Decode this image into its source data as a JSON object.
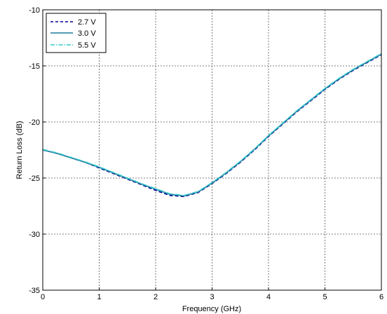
{
  "chart_data": {
    "type": "line",
    "xlabel": "Frequency (GHz)",
    "ylabel": "Return Loss (dB)",
    "xlim": [
      0,
      6
    ],
    "ylim": [
      -35,
      -10
    ],
    "xticks": [
      "0",
      "1",
      "2",
      "3",
      "4",
      "5",
      "6"
    ],
    "yticks": [
      "-10",
      "-15",
      "-20",
      "-25",
      "-30",
      "-35"
    ],
    "grid": true,
    "legend_position": "top-left",
    "x": [
      0,
      0.25,
      0.5,
      0.75,
      1.0,
      1.25,
      1.5,
      1.75,
      2.0,
      2.25,
      2.5,
      2.75,
      3.0,
      3.25,
      3.5,
      3.75,
      4.0,
      4.25,
      4.5,
      4.75,
      5.0,
      5.25,
      5.5,
      5.75,
      6.0
    ],
    "series": [
      {
        "name": "2.7 V",
        "color": "#000099",
        "style": "dashed",
        "values": [
          -22.5,
          -22.8,
          -23.2,
          -23.6,
          -24.1,
          -24.6,
          -25.1,
          -25.6,
          -26.1,
          -26.55,
          -26.65,
          -26.3,
          -25.5,
          -24.6,
          -23.6,
          -22.5,
          -21.3,
          -20.2,
          -19.1,
          -18.1,
          -17.1,
          -16.2,
          -15.4,
          -14.7,
          -14.0
        ]
      },
      {
        "name": "3.0 V",
        "color": "#1f7a9c",
        "style": "solid",
        "values": [
          -22.5,
          -22.8,
          -23.2,
          -23.6,
          -24.05,
          -24.55,
          -25.05,
          -25.55,
          -26.0,
          -26.45,
          -26.6,
          -26.25,
          -25.45,
          -24.55,
          -23.55,
          -22.45,
          -21.25,
          -20.15,
          -19.05,
          -18.05,
          -17.05,
          -16.15,
          -15.35,
          -14.65,
          -13.95
        ]
      },
      {
        "name": "5.5 V",
        "color": "#33cccc",
        "style": "dashdot",
        "values": [
          -22.45,
          -22.75,
          -23.15,
          -23.55,
          -24.0,
          -24.5,
          -25.0,
          -25.5,
          -25.95,
          -26.4,
          -26.55,
          -26.2,
          -25.4,
          -24.5,
          -23.5,
          -22.4,
          -21.2,
          -20.1,
          -19.0,
          -18.0,
          -17.0,
          -16.1,
          -15.3,
          -14.6,
          -13.9
        ]
      }
    ]
  }
}
